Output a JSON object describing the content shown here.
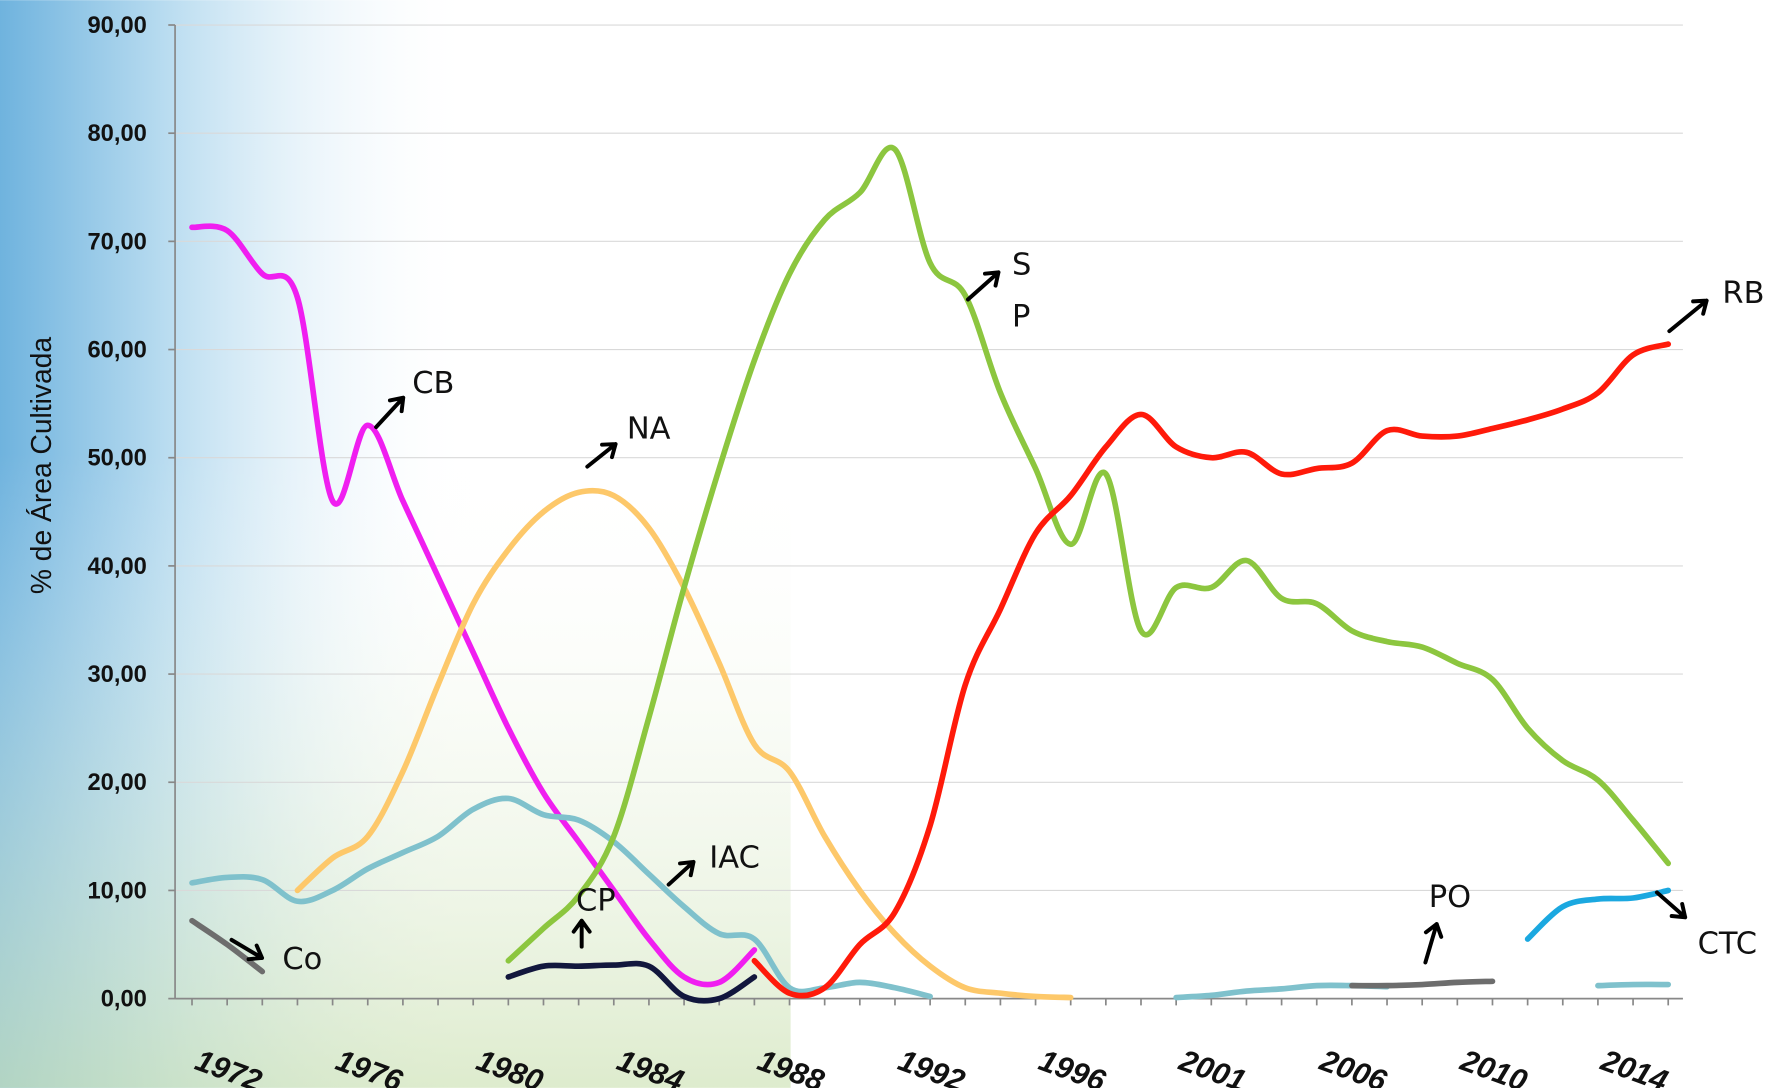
{
  "chart_data": {
    "type": "line",
    "ylabel": "% de Área Cultivada",
    "categories": [
      null,
      "1972",
      null,
      null,
      null,
      "1976",
      null,
      null,
      null,
      "1980",
      null,
      null,
      null,
      "1984",
      null,
      null,
      null,
      "1988",
      null,
      null,
      null,
      "1992",
      null,
      null,
      null,
      "1996",
      null,
      null,
      null,
      "2001",
      null,
      null,
      null,
      "2006",
      null,
      null,
      null,
      "2010",
      null,
      null,
      null,
      "2014",
      null
    ],
    "ylim": [
      0,
      90
    ],
    "yticks": [
      {
        "value": 0,
        "label": "0,00"
      },
      {
        "value": 10,
        "label": "10,00"
      },
      {
        "value": 20,
        "label": "20,00"
      },
      {
        "value": 30,
        "label": "30,00"
      },
      {
        "value": 40,
        "label": "40,00"
      },
      {
        "value": 50,
        "label": "50,00"
      },
      {
        "value": 60,
        "label": "60,00"
      },
      {
        "value": 70,
        "label": "70,00"
      },
      {
        "value": 80,
        "label": "80,00"
      },
      {
        "value": 90,
        "label": "90,00"
      }
    ],
    "grid": true,
    "series": [
      {
        "name": "CB",
        "color": "#f01ef0",
        "values": [
          71.3,
          71,
          67,
          64.8,
          46,
          53,
          46,
          39,
          32,
          25,
          19,
          14.5,
          10,
          5.5,
          2,
          1.5,
          4.5,
          null,
          null,
          null,
          null,
          null,
          null,
          null,
          null,
          null,
          null,
          null,
          null,
          null,
          null,
          null,
          null,
          null,
          null,
          null,
          null,
          null,
          null,
          null,
          null,
          null,
          null
        ]
      },
      {
        "name": "NA",
        "color": "#fdc86a",
        "values": [
          null,
          null,
          null,
          10,
          13,
          15,
          21,
          29,
          36.5,
          41.5,
          45,
          46.8,
          46.5,
          43.5,
          38,
          31,
          23.5,
          21,
          15,
          10,
          6,
          3,
          1,
          0.5,
          0.2,
          0.1,
          null,
          null,
          null,
          null,
          null,
          null,
          null,
          null,
          null,
          null,
          null,
          null,
          null,
          null,
          null,
          null,
          null
        ]
      },
      {
        "name": "IAC",
        "color": "#7fc1cc",
        "values": [
          10.7,
          11.2,
          11,
          9,
          10,
          12,
          13.5,
          15,
          17.5,
          18.5,
          17,
          16.5,
          14.5,
          11.5,
          8.5,
          6,
          5.5,
          1,
          1,
          1.5,
          1,
          0.2,
          null,
          null,
          null,
          null,
          null,
          null,
          0.1,
          0.3,
          0.7,
          0.9,
          1.2,
          1.2,
          1.1,
          null,
          null,
          null,
          null,
          null,
          1.2,
          1.3,
          1.3
        ]
      },
      {
        "name": "SP",
        "color": "#8cc63f",
        "values": [
          null,
          null,
          null,
          null,
          null,
          null,
          null,
          null,
          null,
          3.5,
          6.5,
          9.5,
          15,
          26,
          38,
          49,
          59,
          67,
          72,
          74.5,
          78.5,
          68,
          65,
          56,
          49,
          42,
          48.5,
          34,
          38,
          38,
          40.5,
          37,
          36.5,
          34,
          33,
          32.5,
          31,
          29.5,
          25,
          22,
          20.2,
          16.5,
          12.5
        ]
      },
      {
        "name": "RB",
        "color": "#ff1a0a",
        "values": [
          null,
          null,
          null,
          null,
          null,
          null,
          null,
          null,
          null,
          null,
          null,
          null,
          null,
          null,
          null,
          null,
          3.5,
          0.5,
          1,
          5,
          8,
          16,
          29,
          36,
          43,
          46.5,
          51,
          54,
          51,
          50,
          50.5,
          48.5,
          49,
          49.5,
          52.5,
          52,
          52,
          52.7,
          53.5,
          54.5,
          56,
          59.5,
          60.5
        ]
      },
      {
        "name": "CP",
        "color": "#12173d",
        "values": [
          null,
          null,
          null,
          null,
          null,
          null,
          null,
          null,
          null,
          2,
          3,
          3,
          3.1,
          3,
          0.2,
          0,
          2,
          null,
          null,
          null,
          null,
          null,
          null,
          null,
          null,
          null,
          null,
          null,
          null,
          null,
          null,
          null,
          null,
          null,
          null,
          null,
          null,
          null,
          null,
          null,
          null,
          null,
          null
        ]
      },
      {
        "name": "Co",
        "color": "#6d6d6d",
        "values": [
          7.2,
          5,
          2.5,
          null,
          null,
          null,
          null,
          null,
          null,
          null,
          null,
          null,
          null,
          null,
          null,
          null,
          null,
          null,
          null,
          null,
          null,
          null,
          null,
          null,
          null,
          null,
          null,
          null,
          null,
          null,
          null,
          null,
          null,
          null,
          null,
          null,
          null,
          null,
          null,
          null,
          null,
          null,
          null
        ]
      },
      {
        "name": "PO",
        "color": "#6d6d6d",
        "values": [
          null,
          null,
          null,
          null,
          null,
          null,
          null,
          null,
          null,
          null,
          null,
          null,
          null,
          null,
          null,
          null,
          null,
          null,
          null,
          null,
          null,
          null,
          null,
          null,
          null,
          null,
          null,
          null,
          null,
          null,
          null,
          null,
          null,
          1.2,
          1.2,
          1.3,
          1.5,
          1.6,
          null,
          null,
          null,
          null,
          null
        ]
      },
      {
        "name": "CTC",
        "color": "#1ba8e0",
        "values": [
          null,
          null,
          null,
          null,
          null,
          null,
          null,
          null,
          null,
          null,
          null,
          null,
          null,
          null,
          null,
          null,
          null,
          null,
          null,
          null,
          null,
          null,
          null,
          null,
          null,
          null,
          null,
          null,
          null,
          null,
          null,
          null,
          null,
          null,
          null,
          null,
          null,
          null,
          5.5,
          8.5,
          9.2,
          9.3,
          10
        ]
      }
    ]
  }
}
